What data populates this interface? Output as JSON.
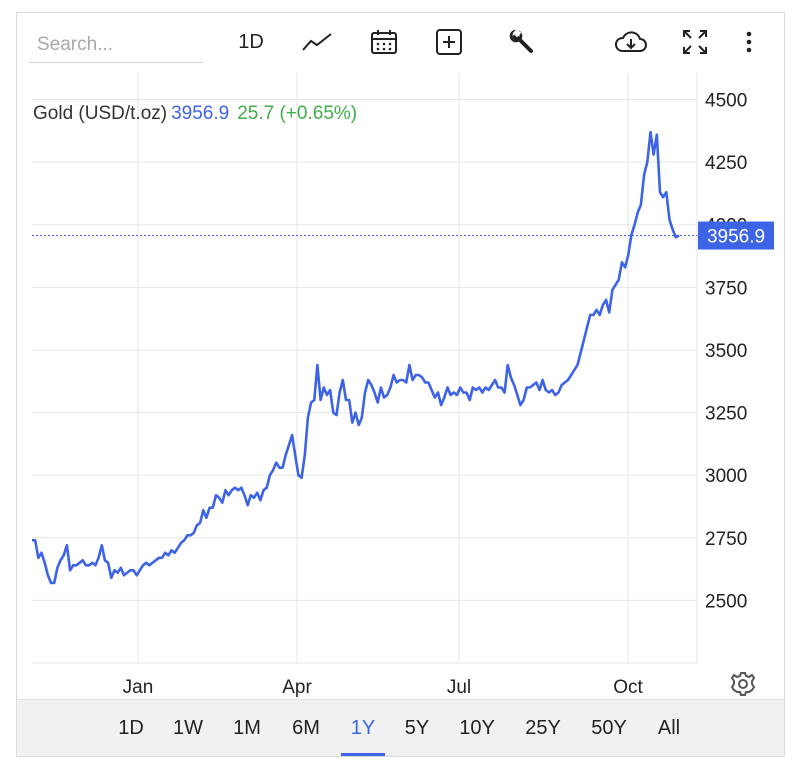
{
  "toolbar": {
    "search_placeholder": "Search...",
    "interval_label": "1D",
    "icons": [
      "line-chart-icon",
      "calendar-icon",
      "plus-icon",
      "wrench-icon",
      "cloud-download-icon",
      "fullscreen-icon",
      "more-icon"
    ]
  },
  "legend": {
    "symbol": "Gold (USD/t.oz)",
    "price": "3956.9",
    "change": "25.7 (+0.65%)"
  },
  "ranges": {
    "items": [
      "1D",
      "1W",
      "1M",
      "6M",
      "1Y",
      "5Y",
      "10Y",
      "25Y",
      "50Y",
      "All"
    ],
    "active": "1Y"
  },
  "colors": {
    "line": "#3d63e6",
    "positive": "#3fae49",
    "grid": "#e6e6e6",
    "range_bar": "#f1f1f1"
  },
  "chart_data": {
    "type": "line",
    "title": "Gold (USD/t.oz)",
    "last_value": 3956.9,
    "last_value_label": "3956.9",
    "x_ticks": [
      "Jan",
      "Apr",
      "Jul",
      "Oct"
    ],
    "y_ticks": [
      2500,
      2750,
      3000,
      3250,
      3500,
      3750,
      4000,
      4250,
      4500
    ],
    "ylim": [
      2250,
      4550
    ],
    "grid": true,
    "series": [
      {
        "values": [
          2740,
          2740,
          2670,
          2690,
          2650,
          2600,
          2570,
          2570,
          2630,
          2660,
          2680,
          2720,
          2620,
          2640,
          2640,
          2650,
          2660,
          2640,
          2640,
          2650,
          2640,
          2670,
          2720,
          2660,
          2650,
          2590,
          2620,
          2610,
          2630,
          2600,
          2610,
          2620,
          2620,
          2600,
          2620,
          2640,
          2650,
          2640,
          2650,
          2660,
          2670,
          2670,
          2690,
          2680,
          2700,
          2690,
          2710,
          2730,
          2740,
          2760,
          2760,
          2770,
          2800,
          2810,
          2860,
          2830,
          2870,
          2870,
          2920,
          2910,
          2890,
          2940,
          2920,
          2940,
          2950,
          2940,
          2950,
          2920,
          2880,
          2920,
          2910,
          2930,
          2900,
          2940,
          2950,
          3000,
          3020,
          3050,
          3030,
          3030,
          3080,
          3120,
          3160,
          3080,
          3000,
          2990,
          3080,
          3230,
          3290,
          3300,
          3440,
          3300,
          3350,
          3320,
          3340,
          3250,
          3240,
          3330,
          3380,
          3300,
          3300,
          3210,
          3250,
          3200,
          3230,
          3330,
          3380,
          3360,
          3330,
          3290,
          3350,
          3310,
          3320,
          3350,
          3400,
          3370,
          3380,
          3380,
          3370,
          3440,
          3380,
          3400,
          3400,
          3390,
          3370,
          3370,
          3340,
          3310,
          3330,
          3280,
          3310,
          3350,
          3320,
          3330,
          3320,
          3350,
          3330,
          3330,
          3300,
          3350,
          3340,
          3350,
          3330,
          3350,
          3340,
          3360,
          3380,
          3350,
          3350,
          3330,
          3440,
          3390,
          3360,
          3320,
          3280,
          3300,
          3350,
          3350,
          3360,
          3370,
          3340,
          3380,
          3340,
          3330,
          3340,
          3320,
          3330,
          3360,
          3370,
          3380,
          3400,
          3420,
          3440,
          3490,
          3540,
          3590,
          3640,
          3640,
          3660,
          3640,
          3680,
          3700,
          3650,
          3740,
          3760,
          3780,
          3850,
          3830,
          3880,
          3960,
          4000,
          4050,
          4080,
          4200,
          4250,
          4370,
          4280,
          4360,
          4130,
          4110,
          4130,
          4020,
          3980,
          3950,
          3956.9
        ]
      }
    ]
  }
}
